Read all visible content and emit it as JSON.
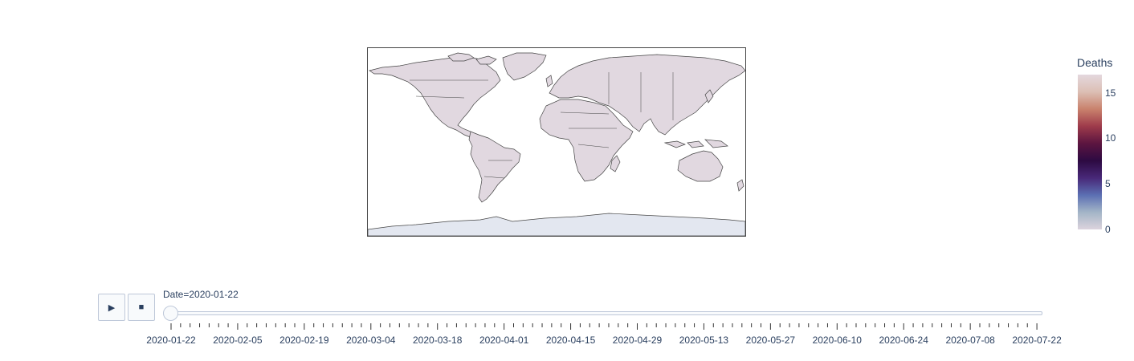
{
  "colorbar": {
    "title": "Deaths",
    "ticks": [
      {
        "value": 0,
        "label": "0"
      },
      {
        "value": 5,
        "label": "5"
      },
      {
        "value": 10,
        "label": "10"
      },
      {
        "value": 15,
        "label": "15"
      }
    ],
    "range": [
      0,
      17
    ],
    "colors": [
      "#dcd3dd",
      "#a3b5c7",
      "#5b6fb3",
      "#482878",
      "#2d0a42",
      "#5c1540",
      "#9e3b4b",
      "#c9826d",
      "#dcbfb4",
      "#e4d8de"
    ]
  },
  "map": {
    "land_color": "#e1d8e0",
    "ocean_color": "#ffffff",
    "antarctica_color": "#e3e7f0",
    "border_color": "#444444",
    "projection": "equirectangular"
  },
  "controls": {
    "play_icon": "▶",
    "stop_icon": "■"
  },
  "slider": {
    "prefix": "Date=",
    "current": "2020-01-22",
    "current_index": 0,
    "total_steps": 184,
    "labels": [
      "2020-01-22",
      "2020-02-05",
      "2020-02-19",
      "2020-03-04",
      "2020-03-18",
      "2020-04-01",
      "2020-04-15",
      "2020-04-29",
      "2020-05-13",
      "2020-05-27",
      "2020-06-10",
      "2020-06-24",
      "2020-07-08",
      "2020-07-22"
    ]
  },
  "chart_data": {
    "type": "choropleth",
    "colorbar_title": "Deaths",
    "color_range": [
      0,
      17
    ],
    "animation_frame": "Date",
    "frame": "2020-01-22"
  }
}
